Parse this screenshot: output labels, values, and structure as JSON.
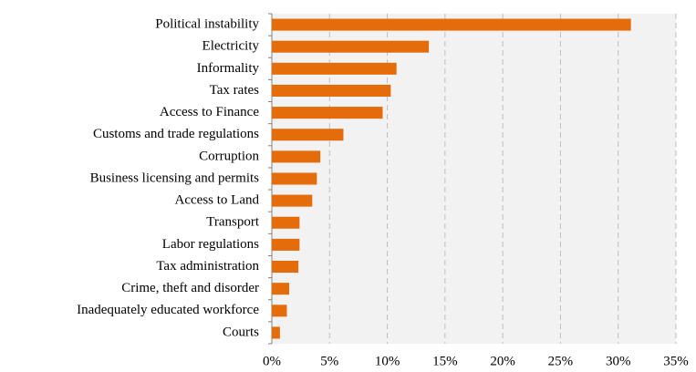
{
  "chart_data": {
    "type": "barh",
    "categories": [
      "Political instability",
      "Electricity",
      "Informality",
      "Tax rates",
      "Access to Finance",
      "Customs and trade regulations",
      "Corruption",
      "Business licensing and permits",
      "Access to Land",
      "Transport",
      "Labor regulations",
      "Tax administration",
      "Crime, theft and disorder",
      "Inadequately educated workforce",
      "Courts"
    ],
    "values": [
      31.1,
      13.6,
      10.8,
      10.3,
      9.6,
      6.2,
      4.2,
      3.9,
      3.5,
      2.4,
      2.4,
      2.3,
      1.5,
      1.3,
      0.7
    ],
    "color": "#e46c0a",
    "xlim": [
      0,
      35
    ],
    "xticks": [
      {
        "value": 0,
        "label": "0%"
      },
      {
        "value": 5,
        "label": "5%"
      },
      {
        "value": 10,
        "label": "10%"
      },
      {
        "value": 15,
        "label": "15%"
      },
      {
        "value": 20,
        "label": "20%"
      },
      {
        "value": 25,
        "label": "25%"
      },
      {
        "value": 30,
        "label": "30%"
      },
      {
        "value": 35,
        "label": "35%"
      }
    ],
    "grid": true
  }
}
